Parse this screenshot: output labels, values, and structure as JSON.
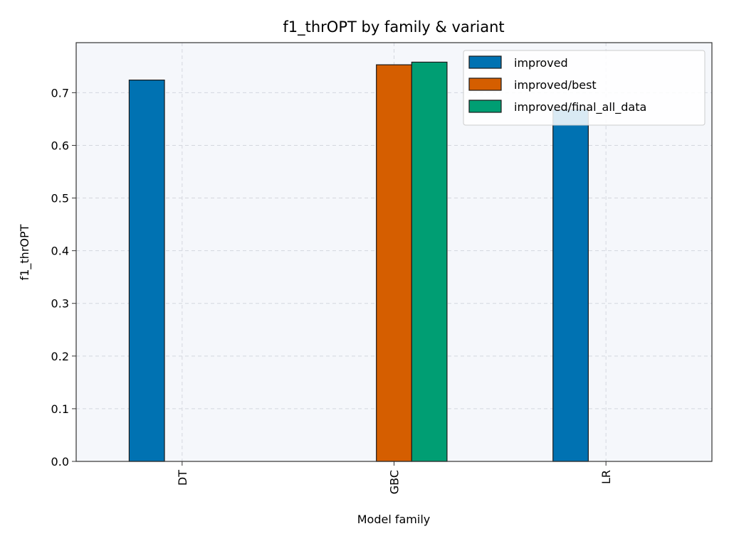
{
  "chart_data": {
    "type": "bar",
    "title": "f1_thrOPT by family & variant",
    "xlabel": "Model family",
    "ylabel": "f1_thrOPT",
    "categories": [
      "DT",
      "GBC",
      "LR"
    ],
    "series": [
      {
        "name": "improved",
        "color": "#0072b2",
        "values": [
          0.724,
          0.0,
          0.668
        ]
      },
      {
        "name": "improved/best",
        "color": "#d55e00",
        "values": [
          0.0,
          0.753,
          0.0
        ]
      },
      {
        "name": "improved/final_all_data",
        "color": "#009e73",
        "values": [
          0.0,
          0.758,
          0.0
        ]
      }
    ],
    "ylim": [
      0,
      0.795
    ],
    "yticks": [
      0.0,
      0.1,
      0.2,
      0.3,
      0.4,
      0.5,
      0.6,
      0.7
    ],
    "ytick_labels": [
      "0.0",
      "0.1",
      "0.2",
      "0.3",
      "0.4",
      "0.5",
      "0.6",
      "0.7"
    ],
    "grid": true,
    "legend_position": "top-right",
    "plot_background": "#f5f7fb",
    "edge_color": "#1a1a1a"
  }
}
